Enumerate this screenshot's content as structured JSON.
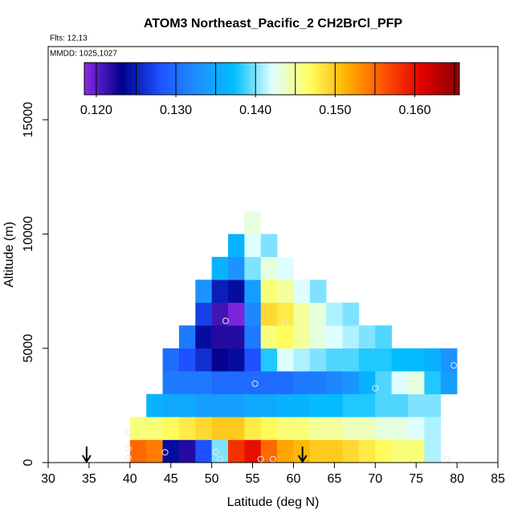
{
  "chart_data": {
    "type": "heatmap",
    "title": "ATOM3 Northeast_Pacific_2 CH2BrCl_PFP",
    "subtitle": "Flts: 12,13",
    "annotation": "MMDD: 1025,1027",
    "x_label": "Latitude (deg N)",
    "y_label": "Altitude (m)",
    "xlim": [
      30,
      85
    ],
    "xticks": [
      30,
      35,
      40,
      45,
      50,
      55,
      60,
      65,
      70,
      75,
      80,
      85
    ],
    "ylim": [
      0,
      18200
    ],
    "yticks": [
      0,
      5000,
      10000,
      15000
    ],
    "lat_edges": [
      40,
      42,
      44,
      46,
      48,
      50,
      52,
      54,
      56,
      58,
      60,
      62,
      64,
      66,
      68,
      70,
      72,
      74,
      76,
      78,
      80
    ],
    "alt_edges": [
      0,
      1000,
      2000,
      3000,
      4000,
      5000,
      6000,
      7000,
      8000,
      9000,
      10000,
      11000
    ],
    "z": [
      [
        0.155,
        0.154,
        0.124,
        0.122,
        0.128,
        0.14,
        0.158,
        0.16,
        0.155,
        0.152,
        0.151,
        0.15,
        0.15,
        0.149,
        0.148,
        0.147,
        0.146,
        0.146,
        0.141,
        null
      ],
      [
        0.146,
        0.146,
        0.147,
        0.148,
        0.149,
        0.15,
        0.15,
        0.148,
        0.147,
        0.146,
        0.146,
        0.145,
        0.145,
        0.144,
        0.144,
        0.143,
        0.143,
        0.142,
        0.141,
        null
      ],
      [
        null,
        0.136,
        0.135,
        0.135,
        0.134,
        0.134,
        0.134,
        0.135,
        0.135,
        0.136,
        0.136,
        0.137,
        0.137,
        0.138,
        0.138,
        0.139,
        0.139,
        0.14,
        0.14,
        null
      ],
      [
        null,
        null,
        0.131,
        0.131,
        0.131,
        0.13,
        0.13,
        0.13,
        0.13,
        0.13,
        0.131,
        0.131,
        0.132,
        0.133,
        0.136,
        0.139,
        0.142,
        0.143,
        0.138,
        0.134
      ],
      [
        null,
        null,
        0.13,
        0.128,
        0.126,
        0.123,
        0.124,
        0.128,
        0.138,
        0.142,
        0.141,
        0.14,
        0.139,
        0.139,
        0.138,
        0.138,
        0.137,
        0.137,
        0.136,
        0.133
      ],
      [
        null,
        null,
        null,
        0.131,
        0.124,
        0.122,
        0.122,
        0.131,
        0.146,
        0.147,
        0.145,
        0.143,
        0.142,
        0.141,
        0.14,
        0.139,
        null,
        null,
        null,
        null
      ],
      [
        null,
        null,
        null,
        null,
        0.127,
        0.121,
        0.119,
        0.132,
        0.149,
        0.148,
        0.145,
        0.143,
        0.141,
        0.14,
        null,
        null,
        null,
        null,
        null,
        null
      ],
      [
        null,
        null,
        null,
        null,
        0.133,
        0.125,
        0.124,
        0.134,
        0.146,
        0.145,
        0.142,
        0.14,
        null,
        null,
        null,
        null,
        null,
        null,
        null,
        null
      ],
      [
        null,
        null,
        null,
        null,
        null,
        0.136,
        0.133,
        0.14,
        0.143,
        0.142,
        null,
        null,
        null,
        null,
        null,
        null,
        null,
        null,
        null,
        null
      ],
      [
        null,
        null,
        null,
        null,
        null,
        null,
        0.136,
        0.142,
        0.14,
        null,
        null,
        null,
        null,
        null,
        null,
        null,
        null,
        null,
        null,
        null
      ],
      [
        null,
        null,
        null,
        null,
        null,
        null,
        null,
        0.143,
        null,
        null,
        null,
        null,
        null,
        null,
        null,
        null,
        null,
        null,
        null,
        null
      ]
    ],
    "zlim": [
      0.1185,
      0.1656
    ],
    "zticks": [
      {
        "value": 0.12,
        "label": "0.120"
      },
      {
        "value": 0.13,
        "label": "0.130"
      },
      {
        "value": 0.14,
        "label": "0.140"
      },
      {
        "value": 0.15,
        "label": "0.150"
      },
      {
        "value": 0.16,
        "label": "0.160"
      }
    ],
    "zbreaks": [
      0.12,
      0.125,
      0.13,
      0.135,
      0.14,
      0.145,
      0.15,
      0.155,
      0.16,
      0.165
    ],
    "colors": [
      "#8a2be2",
      "#00008b",
      "#1e50ff",
      "#1e90ff",
      "#00bfff",
      "#e0ffff",
      "#ffff60",
      "#ffb000",
      "#ff5000",
      "#e00000",
      "#8b0000"
    ],
    "points": {
      "x": [
        39.8,
        39.8,
        39.8,
        44.3,
        50.5,
        51,
        51.7,
        55.3,
        56,
        57.5,
        59,
        70,
        78.8,
        79.6
      ],
      "y": [
        1300,
        600,
        200,
        450,
        450,
        150,
        6200,
        3450,
        150,
        150,
        6100,
        3250,
        150,
        4250
      ],
      "color": "#e8e8e8"
    },
    "arrows": [
      34.7,
      61.1
    ]
  }
}
